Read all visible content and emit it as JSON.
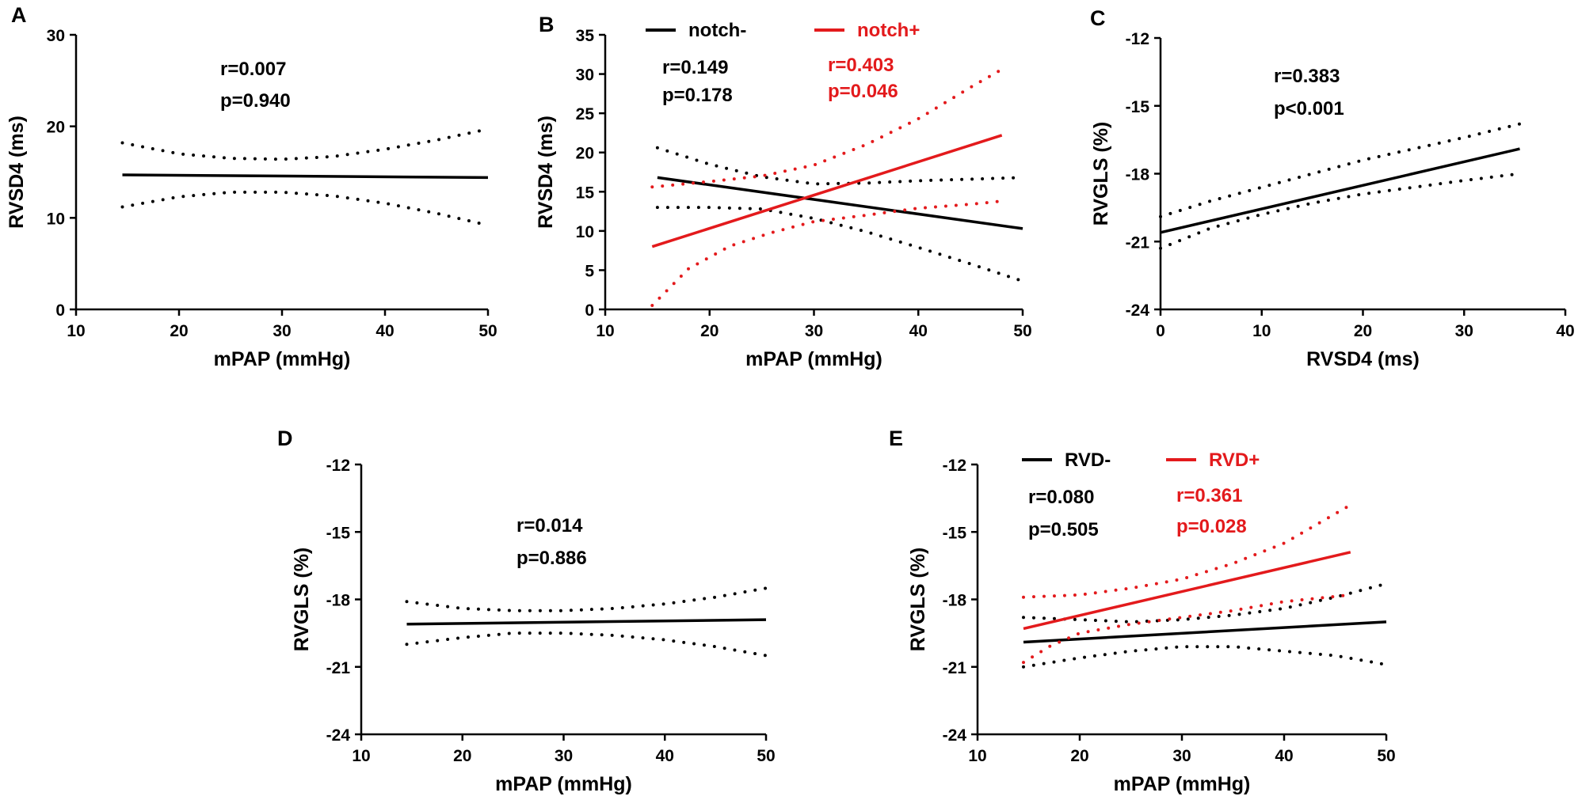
{
  "chart_data": [
    {
      "panel": "A",
      "type": "line",
      "xlabel": "mPAP (mmHg)",
      "ylabel": "RVSD4 (ms)",
      "xlim": [
        10,
        50
      ],
      "ylim": [
        0,
        30
      ],
      "xticks": [
        "10",
        "20",
        "30",
        "40",
        "50"
      ],
      "yticks": [
        "0",
        "10",
        "20",
        "30"
      ],
      "legend": [],
      "annotations": [
        {
          "text": "r=0.007",
          "color": "#000000"
        },
        {
          "text": "p=0.940",
          "color": "#000000"
        }
      ],
      "series": [
        {
          "name": "fit",
          "style": "solid",
          "color": "#000000",
          "x": [
            14.5,
            50
          ],
          "y": [
            14.7,
            14.4
          ]
        },
        {
          "name": "upper 95% CI",
          "style": "dotted",
          "color": "#000000",
          "x": [
            14.5,
            20,
            25,
            30,
            35,
            40,
            45,
            50
          ],
          "y": [
            18.2,
            17.0,
            16.5,
            16.4,
            16.7,
            17.5,
            18.5,
            19.7
          ]
        },
        {
          "name": "lower 95% CI",
          "style": "dotted",
          "color": "#000000",
          "x": [
            14.5,
            20,
            25,
            30,
            35,
            40,
            45,
            50
          ],
          "y": [
            11.2,
            12.3,
            12.8,
            12.8,
            12.4,
            11.6,
            10.5,
            9.2
          ]
        }
      ]
    },
    {
      "panel": "B",
      "type": "line",
      "xlabel": "mPAP (mmHg)",
      "ylabel": "RVSD4 (ms)",
      "xlim": [
        10,
        50
      ],
      "ylim": [
        0,
        35
      ],
      "xticks": [
        "10",
        "20",
        "30",
        "40",
        "50"
      ],
      "yticks": [
        "0",
        "5",
        "10",
        "15",
        "20",
        "25",
        "30",
        "35"
      ],
      "legend": [
        {
          "label": "notch-",
          "color": "#000000"
        },
        {
          "label": "notch+",
          "color": "#e31a1c"
        }
      ],
      "annotations": [
        {
          "text": "r=0.149",
          "color": "#000000"
        },
        {
          "text": "p=0.178",
          "color": "#000000"
        },
        {
          "text": "r=0.403",
          "color": "#e31a1c"
        },
        {
          "text": "p=0.046",
          "color": "#e31a1c"
        }
      ],
      "series": [
        {
          "name": "notch- fit",
          "style": "solid",
          "color": "#000000",
          "x": [
            15,
            50
          ],
          "y": [
            16.8,
            10.3
          ]
        },
        {
          "name": "notch- upper 95% CI",
          "style": "dotted",
          "color": "#000000",
          "x": [
            15,
            20,
            25,
            30,
            35,
            40,
            45,
            50
          ],
          "y": [
            20.6,
            18.5,
            16.9,
            16.0,
            16.1,
            16.4,
            16.6,
            16.8
          ]
        },
        {
          "name": "notch- lower 95% CI",
          "style": "dotted",
          "color": "#000000",
          "x": [
            15,
            20,
            25,
            30,
            35,
            40,
            45,
            50
          ],
          "y": [
            13.0,
            13.0,
            12.8,
            11.6,
            9.9,
            7.9,
            5.8,
            3.6
          ]
        },
        {
          "name": "notch+ fit",
          "style": "solid",
          "color": "#e31a1c",
          "x": [
            14.5,
            48
          ],
          "y": [
            8.0,
            22.2
          ]
        },
        {
          "name": "notch+ upper 95% CI",
          "style": "dotted",
          "color": "#e31a1c",
          "x": [
            14.5,
            20,
            25,
            30,
            35,
            40,
            45,
            48
          ],
          "y": [
            15.6,
            16.3,
            17.0,
            18.4,
            21.0,
            24.3,
            28.3,
            30.6
          ]
        },
        {
          "name": "notch+ lower 95% CI",
          "style": "dotted",
          "color": "#e31a1c",
          "x": [
            14.5,
            18,
            22,
            26,
            30,
            35,
            40,
            45,
            48
          ],
          "y": [
            0.5,
            5.2,
            8.1,
            9.8,
            11.2,
            12.0,
            12.9,
            13.4,
            13.8
          ]
        }
      ]
    },
    {
      "panel": "C",
      "type": "line",
      "xlabel": "RVSD4 (ms)",
      "ylabel": "RVGLS (%)",
      "xlim": [
        0,
        40
      ],
      "ylim": [
        -24,
        -12
      ],
      "xticks": [
        "0",
        "10",
        "20",
        "30",
        "40"
      ],
      "yticks": [
        "-24",
        "-21",
        "-18",
        "-15",
        "-12"
      ],
      "legend": [],
      "annotations": [
        {
          "text": "r=0.383",
          "color": "#000000"
        },
        {
          "text": "p<0.001",
          "color": "#000000"
        }
      ],
      "series": [
        {
          "name": "fit",
          "style": "solid",
          "color": "#000000",
          "x": [
            0,
            35.5
          ],
          "y": [
            -20.6,
            -16.9
          ]
        },
        {
          "name": "upper 95% CI",
          "style": "dotted",
          "color": "#000000",
          "x": [
            0,
            5,
            10,
            15,
            20,
            25,
            30,
            35.5
          ],
          "y": [
            -19.9,
            -19.2,
            -18.6,
            -18.0,
            -17.4,
            -16.9,
            -16.4,
            -15.8
          ]
        },
        {
          "name": "lower 95% CI",
          "style": "dotted",
          "color": "#000000",
          "x": [
            0,
            5,
            10,
            15,
            20,
            25,
            30,
            35.5
          ],
          "y": [
            -21.3,
            -20.4,
            -19.8,
            -19.3,
            -18.9,
            -18.6,
            -18.3,
            -18.0
          ]
        }
      ]
    },
    {
      "panel": "D",
      "type": "line",
      "xlabel": "mPAP (mmHg)",
      "ylabel": "RVGLS (%)",
      "xlim": [
        10,
        50
      ],
      "ylim": [
        -24,
        -12
      ],
      "xticks": [
        "10",
        "20",
        "30",
        "40",
        "50"
      ],
      "yticks": [
        "-24",
        "-21",
        "-18",
        "-15",
        "-12"
      ],
      "legend": [],
      "annotations": [
        {
          "text": "r=0.014",
          "color": "#000000"
        },
        {
          "text": "p=0.886",
          "color": "#000000"
        }
      ],
      "series": [
        {
          "name": "fit",
          "style": "solid",
          "color": "#000000",
          "x": [
            14.5,
            50
          ],
          "y": [
            -19.1,
            -18.9
          ]
        },
        {
          "name": "upper 95% CI",
          "style": "dotted",
          "color": "#000000",
          "x": [
            14.5,
            20,
            25,
            30,
            35,
            40,
            45,
            50
          ],
          "y": [
            -18.1,
            -18.4,
            -18.5,
            -18.5,
            -18.4,
            -18.2,
            -17.9,
            -17.5
          ]
        },
        {
          "name": "lower 95% CI",
          "style": "dotted",
          "color": "#000000",
          "x": [
            14.5,
            20,
            25,
            30,
            35,
            40,
            45,
            50
          ],
          "y": [
            -20.0,
            -19.7,
            -19.5,
            -19.5,
            -19.6,
            -19.8,
            -20.1,
            -20.5
          ]
        }
      ]
    },
    {
      "panel": "E",
      "type": "line",
      "xlabel": "mPAP (mmHg)",
      "ylabel": "RVGLS (%)",
      "xlim": [
        10,
        50
      ],
      "ylim": [
        -24,
        -12
      ],
      "xticks": [
        "10",
        "20",
        "30",
        "40",
        "50"
      ],
      "yticks": [
        "-24",
        "-21",
        "-18",
        "-15",
        "-12"
      ],
      "legend": [
        {
          "label": "RVD-",
          "color": "#000000"
        },
        {
          "label": "RVD+",
          "color": "#e31a1c"
        }
      ],
      "annotations": [
        {
          "text": "r=0.080",
          "color": "#000000"
        },
        {
          "text": "p=0.505",
          "color": "#000000"
        },
        {
          "text": "r=0.361",
          "color": "#e31a1c"
        },
        {
          "text": "p=0.028",
          "color": "#e31a1c"
        }
      ],
      "series": [
        {
          "name": "RVD- fit",
          "style": "solid",
          "color": "#000000",
          "x": [
            14.5,
            50
          ],
          "y": [
            -19.9,
            -19.0
          ]
        },
        {
          "name": "RVD- upper 95% CI",
          "style": "dotted",
          "color": "#000000",
          "x": [
            14.5,
            20,
            25,
            30,
            35,
            40,
            45,
            50
          ],
          "y": [
            -18.8,
            -18.9,
            -19.0,
            -18.9,
            -18.7,
            -18.4,
            -17.9,
            -17.3
          ]
        },
        {
          "name": "RVD- lower 95% CI",
          "style": "dotted",
          "color": "#000000",
          "x": [
            14.5,
            20,
            25,
            30,
            35,
            40,
            45,
            50
          ],
          "y": [
            -21.0,
            -20.6,
            -20.3,
            -20.1,
            -20.1,
            -20.3,
            -20.5,
            -20.9
          ]
        },
        {
          "name": "RVD+ fit",
          "style": "solid",
          "color": "#e31a1c",
          "x": [
            14.5,
            46.5
          ],
          "y": [
            -19.3,
            -15.9
          ]
        },
        {
          "name": "RVD+ upper 95% CI",
          "style": "dotted",
          "color": "#e31a1c",
          "x": [
            14.5,
            20,
            25,
            30,
            35,
            40,
            46.5
          ],
          "y": [
            -17.9,
            -17.8,
            -17.5,
            -17.1,
            -16.4,
            -15.5,
            -13.8
          ]
        },
        {
          "name": "RVD+ lower 95% CI",
          "style": "dotted",
          "color": "#e31a1c",
          "x": [
            14.5,
            17,
            20,
            25,
            30,
            35,
            40,
            46.5
          ],
          "y": [
            -20.8,
            -20.1,
            -19.5,
            -19.1,
            -18.8,
            -18.5,
            -18.1,
            -17.8
          ]
        }
      ]
    }
  ]
}
